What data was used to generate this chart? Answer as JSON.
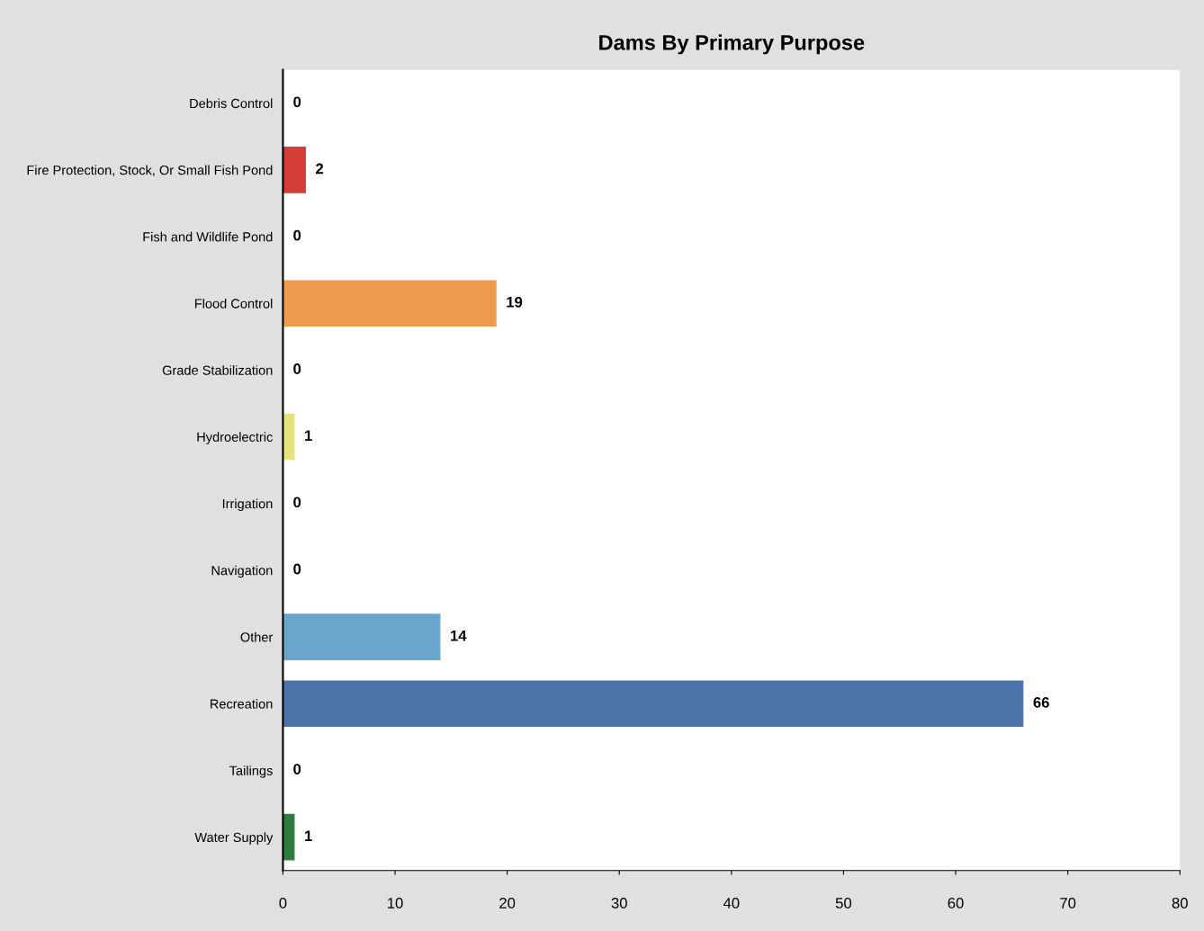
{
  "chart_data": {
    "type": "bar",
    "orientation": "horizontal",
    "title": "Dams By Primary Purpose",
    "categories": [
      "Debris Control",
      "Fire Protection, Stock, Or Small Fish Pond",
      "Fish and Wildlife Pond",
      "Flood Control",
      "Grade Stabilization",
      "Hydroelectric",
      "Irrigation",
      "Navigation",
      "Other",
      "Recreation",
      "Tailings",
      "Water Supply"
    ],
    "values": [
      0,
      2,
      0,
      19,
      0,
      1,
      0,
      0,
      14,
      66,
      0,
      1
    ],
    "colors": [
      "#888888",
      "#d43d35",
      "#888888",
      "#ee9a4c",
      "#888888",
      "#e4e27a",
      "#888888",
      "#888888",
      "#6aa6cc",
      "#4c74aa",
      "#888888",
      "#2f7d3e"
    ],
    "xlim": [
      0,
      80
    ],
    "xticks": [
      0,
      10,
      20,
      30,
      40,
      50,
      60,
      70,
      80
    ],
    "data_labels": true,
    "grid": false,
    "legend": false
  }
}
